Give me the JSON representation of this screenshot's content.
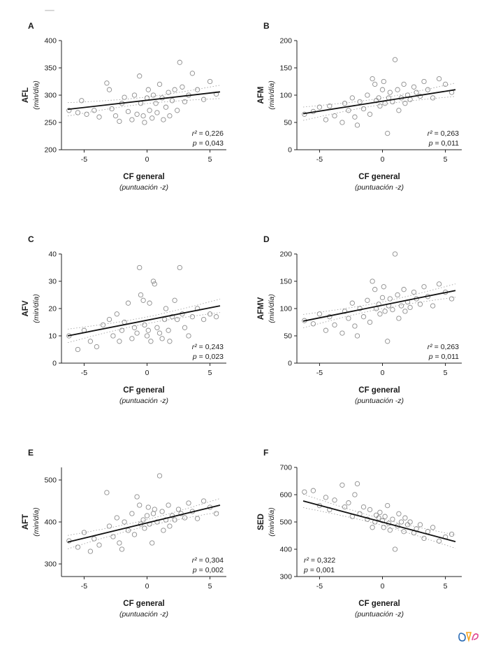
{
  "page": {
    "background": "#ffffff"
  },
  "style": {
    "axis_color": "#222222",
    "point_color": "#8c8c8c",
    "line_color": "#111111",
    "band_color": "#9a9a9a"
  },
  "chart_data": [
    {
      "type": "scatter",
      "panel": "A",
      "ylabel": "AFL",
      "ylabel_sub": "(min/día)",
      "xlabel": "CF general",
      "xlabel_sub": "(puntuación -z)",
      "xlim": [
        -6.8,
        6.3
      ],
      "ylim": [
        200,
        400
      ],
      "xticks": [
        -5,
        0,
        5
      ],
      "yticks": [
        200,
        250,
        300,
        350,
        400
      ],
      "regression": [
        [
          -6.3,
          274
        ],
        [
          5.8,
          306
        ]
      ],
      "stats": {
        "r2_label": "r²",
        "r2_value": "0,226",
        "p_label": "p",
        "p_value": "0,043",
        "position": "bottom-right"
      },
      "points": [
        [
          -6.2,
          272
        ],
        [
          -5.5,
          268
        ],
        [
          -5.2,
          290
        ],
        [
          -4.8,
          265
        ],
        [
          -4.2,
          272
        ],
        [
          -3.8,
          260
        ],
        [
          -3.2,
          322
        ],
        [
          -3.0,
          310
        ],
        [
          -2.8,
          275
        ],
        [
          -2.5,
          262
        ],
        [
          -2.2,
          252
        ],
        [
          -2.0,
          285
        ],
        [
          -1.8,
          296
        ],
        [
          -1.5,
          270
        ],
        [
          -1.2,
          255
        ],
        [
          -1.0,
          300
        ],
        [
          -0.8,
          265
        ],
        [
          -0.6,
          335
        ],
        [
          -0.5,
          285
        ],
        [
          -0.3,
          262
        ],
        [
          -0.2,
          250
        ],
        [
          0.0,
          295
        ],
        [
          0.1,
          310
        ],
        [
          0.2,
          272
        ],
        [
          0.4,
          258
        ],
        [
          0.5,
          300
        ],
        [
          0.7,
          285
        ],
        [
          0.8,
          268
        ],
        [
          1.0,
          320
        ],
        [
          1.2,
          295
        ],
        [
          1.3,
          255
        ],
        [
          1.5,
          278
        ],
        [
          1.7,
          305
        ],
        [
          1.8,
          262
        ],
        [
          2.0,
          290
        ],
        [
          2.2,
          310
        ],
        [
          2.4,
          272
        ],
        [
          2.6,
          360
        ],
        [
          2.8,
          315
        ],
        [
          3.0,
          288
        ],
        [
          3.3,
          300
        ],
        [
          3.6,
          340
        ],
        [
          4.0,
          310
        ],
        [
          4.5,
          292
        ],
        [
          5.0,
          325
        ],
        [
          5.5,
          302
        ]
      ]
    },
    {
      "type": "scatter",
      "panel": "B",
      "ylabel": "AFM",
      "ylabel_sub": "(min/día)",
      "xlabel": "CF general",
      "xlabel_sub": "(puntuación -z)",
      "xlim": [
        -6.8,
        6.3
      ],
      "ylim": [
        0,
        200
      ],
      "xticks": [
        -5,
        0,
        5
      ],
      "yticks": [
        0,
        50,
        100,
        150,
        200
      ],
      "regression": [
        [
          -6.3,
          66
        ],
        [
          5.8,
          110
        ]
      ],
      "stats": {
        "r2_label": "r²",
        "r2_value": "0,263",
        "p_label": "p",
        "p_value": "0,011",
        "position": "bottom-right"
      },
      "points": [
        [
          -6.2,
          65
        ],
        [
          -5.5,
          70
        ],
        [
          -5.0,
          78
        ],
        [
          -4.5,
          55
        ],
        [
          -4.2,
          80
        ],
        [
          -3.8,
          62
        ],
        [
          -3.2,
          50
        ],
        [
          -3.0,
          85
        ],
        [
          -2.7,
          72
        ],
        [
          -2.4,
          95
        ],
        [
          -2.2,
          60
        ],
        [
          -2.0,
          45
        ],
        [
          -1.8,
          88
        ],
        [
          -1.5,
          75
        ],
        [
          -1.2,
          100
        ],
        [
          -1.0,
          65
        ],
        [
          -0.8,
          130
        ],
        [
          -0.6,
          120
        ],
        [
          -0.5,
          90
        ],
        [
          -0.3,
          95
        ],
        [
          -0.2,
          80
        ],
        [
          0.0,
          110
        ],
        [
          0.1,
          125
        ],
        [
          0.2,
          85
        ],
        [
          0.4,
          30
        ],
        [
          0.5,
          95
        ],
        [
          0.6,
          105
        ],
        [
          0.8,
          88
        ],
        [
          1.0,
          165
        ],
        [
          1.2,
          110
        ],
        [
          1.3,
          72
        ],
        [
          1.5,
          95
        ],
        [
          1.7,
          120
        ],
        [
          1.8,
          85
        ],
        [
          2.0,
          100
        ],
        [
          2.2,
          92
        ],
        [
          2.5,
          115
        ],
        [
          2.7,
          105
        ],
        [
          3.0,
          98
        ],
        [
          3.3,
          125
        ],
        [
          3.6,
          110
        ],
        [
          4.0,
          95
        ],
        [
          4.5,
          130
        ],
        [
          5.0,
          120
        ],
        [
          5.5,
          105
        ]
      ]
    },
    {
      "type": "scatter",
      "panel": "C",
      "ylabel": "AFV",
      "ylabel_sub": "(min/día)",
      "xlabel": "CF general",
      "xlabel_sub": "(puntuación -z)",
      "xlim": [
        -6.8,
        6.3
      ],
      "ylim": [
        0,
        40
      ],
      "xticks": [
        -5,
        0,
        5
      ],
      "yticks": [
        0,
        10,
        20,
        30,
        40
      ],
      "regression": [
        [
          -6.3,
          10
        ],
        [
          5.8,
          21
        ]
      ],
      "stats": {
        "r2_label": "r²",
        "r2_value": "0,243",
        "p_label": "p",
        "p_value": "0,023",
        "position": "bottom-right"
      },
      "points": [
        [
          -6.2,
          10
        ],
        [
          -5.5,
          5
        ],
        [
          -5.0,
          12
        ],
        [
          -4.5,
          8
        ],
        [
          -4.0,
          6
        ],
        [
          -3.5,
          14
        ],
        [
          -3.0,
          16
        ],
        [
          -2.7,
          10
        ],
        [
          -2.4,
          18
        ],
        [
          -2.2,
          8
        ],
        [
          -2.0,
          12
        ],
        [
          -1.8,
          15
        ],
        [
          -1.5,
          22
        ],
        [
          -1.2,
          9
        ],
        [
          -1.0,
          13
        ],
        [
          -0.8,
          11
        ],
        [
          -0.6,
          35
        ],
        [
          -0.5,
          25
        ],
        [
          -0.3,
          23
        ],
        [
          -0.2,
          14
        ],
        [
          0.0,
          10
        ],
        [
          0.1,
          12
        ],
        [
          0.2,
          22
        ],
        [
          0.3,
          8
        ],
        [
          0.5,
          30
        ],
        [
          0.6,
          29
        ],
        [
          0.8,
          13
        ],
        [
          1.0,
          11
        ],
        [
          1.2,
          9
        ],
        [
          1.4,
          16
        ],
        [
          1.5,
          20
        ],
        [
          1.7,
          12
        ],
        [
          1.8,
          8
        ],
        [
          2.0,
          17
        ],
        [
          2.2,
          23
        ],
        [
          2.4,
          16
        ],
        [
          2.6,
          35
        ],
        [
          2.8,
          18
        ],
        [
          3.0,
          13
        ],
        [
          3.3,
          10
        ],
        [
          3.6,
          17
        ],
        [
          4.0,
          20
        ],
        [
          4.5,
          16
        ],
        [
          5.0,
          18
        ],
        [
          5.5,
          17
        ]
      ]
    },
    {
      "type": "scatter",
      "panel": "D",
      "ylabel": "AFMV",
      "ylabel_sub": "(min/día)",
      "xlabel": "CF general",
      "xlabel_sub": "(puntuación -z)",
      "xlim": [
        -6.8,
        6.3
      ],
      "ylim": [
        0,
        200
      ],
      "xticks": [
        -5,
        0,
        5
      ],
      "yticks": [
        0,
        50,
        100,
        150,
        200
      ],
      "regression": [
        [
          -6.3,
          77
        ],
        [
          5.8,
          133
        ]
      ],
      "stats": {
        "r2_label": "r²",
        "r2_value": "0,263",
        "p_label": "p",
        "p_value": "0,011",
        "position": "bottom-right"
      },
      "points": [
        [
          -6.2,
          78
        ],
        [
          -5.5,
          72
        ],
        [
          -5.0,
          90
        ],
        [
          -4.5,
          60
        ],
        [
          -4.2,
          85
        ],
        [
          -3.8,
          70
        ],
        [
          -3.2,
          55
        ],
        [
          -3.0,
          95
        ],
        [
          -2.7,
          82
        ],
        [
          -2.4,
          110
        ],
        [
          -2.2,
          68
        ],
        [
          -2.0,
          50
        ],
        [
          -1.8,
          100
        ],
        [
          -1.5,
          85
        ],
        [
          -1.2,
          115
        ],
        [
          -1.0,
          75
        ],
        [
          -0.8,
          150
        ],
        [
          -0.6,
          135
        ],
        [
          -0.5,
          100
        ],
        [
          -0.3,
          108
        ],
        [
          -0.2,
          90
        ],
        [
          0.0,
          120
        ],
        [
          0.1,
          140
        ],
        [
          0.2,
          95
        ],
        [
          0.4,
          40
        ],
        [
          0.5,
          105
        ],
        [
          0.6,
          118
        ],
        [
          0.8,
          98
        ],
        [
          1.0,
          200
        ],
        [
          1.2,
          125
        ],
        [
          1.3,
          82
        ],
        [
          1.5,
          105
        ],
        [
          1.7,
          135
        ],
        [
          1.8,
          95
        ],
        [
          2.0,
          112
        ],
        [
          2.2,
          102
        ],
        [
          2.5,
          130
        ],
        [
          2.7,
          118
        ],
        [
          3.0,
          108
        ],
        [
          3.3,
          140
        ],
        [
          3.6,
          122
        ],
        [
          4.0,
          105
        ],
        [
          4.5,
          145
        ],
        [
          5.0,
          130
        ],
        [
          5.5,
          118
        ]
      ]
    },
    {
      "type": "scatter",
      "panel": "E",
      "ylabel": "AFT",
      "ylabel_sub": "(min/día)",
      "xlabel": "CF general",
      "xlabel_sub": "(puntuación -z)",
      "xlim": [
        -6.8,
        6.3
      ],
      "ylim": [
        270,
        530
      ],
      "xticks": [
        -5,
        0,
        5
      ],
      "yticks": [
        300,
        400,
        500
      ],
      "regression": [
        [
          -6.3,
          352
        ],
        [
          5.8,
          440
        ]
      ],
      "stats": {
        "r2_label": "r²",
        "r2_value": "0,304",
        "p_label": "p",
        "p_value": "0,002",
        "position": "bottom-right"
      },
      "points": [
        [
          -6.2,
          355
        ],
        [
          -5.5,
          340
        ],
        [
          -5.0,
          375
        ],
        [
          -4.5,
          330
        ],
        [
          -4.2,
          360
        ],
        [
          -3.8,
          345
        ],
        [
          -3.2,
          470
        ],
        [
          -3.0,
          390
        ],
        [
          -2.7,
          365
        ],
        [
          -2.4,
          410
        ],
        [
          -2.2,
          350
        ],
        [
          -2.0,
          335
        ],
        [
          -1.8,
          400
        ],
        [
          -1.5,
          380
        ],
        [
          -1.2,
          420
        ],
        [
          -1.0,
          370
        ],
        [
          -0.8,
          460
        ],
        [
          -0.6,
          440
        ],
        [
          -0.5,
          395
        ],
        [
          -0.3,
          405
        ],
        [
          -0.2,
          385
        ],
        [
          0.0,
          415
        ],
        [
          0.1,
          435
        ],
        [
          0.2,
          395
        ],
        [
          0.4,
          350
        ],
        [
          0.5,
          420
        ],
        [
          0.6,
          430
        ],
        [
          0.8,
          400
        ],
        [
          1.0,
          510
        ],
        [
          1.2,
          425
        ],
        [
          1.3,
          380
        ],
        [
          1.5,
          405
        ],
        [
          1.7,
          440
        ],
        [
          1.8,
          390
        ],
        [
          2.0,
          415
        ],
        [
          2.2,
          405
        ],
        [
          2.5,
          430
        ],
        [
          2.7,
          420
        ],
        [
          3.0,
          410
        ],
        [
          3.3,
          445
        ],
        [
          3.6,
          425
        ],
        [
          4.0,
          408
        ],
        [
          4.5,
          450
        ],
        [
          5.0,
          435
        ],
        [
          5.5,
          420
        ]
      ]
    },
    {
      "type": "scatter",
      "panel": "F",
      "ylabel": "SED",
      "ylabel_sub": "(min/día)",
      "xlabel": "CF general",
      "xlabel_sub": "(puntuación -z)",
      "xlim": [
        -6.8,
        6.3
      ],
      "ylim": [
        300,
        700
      ],
      "xticks": [
        -5,
        0,
        5
      ],
      "yticks": [
        300,
        400,
        500,
        600,
        700
      ],
      "regression": [
        [
          -6.3,
          577
        ],
        [
          5.8,
          428
        ]
      ],
      "stats": {
        "r2_label": "r²",
        "r2_value": "0,322",
        "p_label": "p",
        "p_value": "0,001",
        "position": "bottom-left"
      },
      "points": [
        [
          -6.2,
          610
        ],
        [
          -5.5,
          615
        ],
        [
          -5.0,
          560
        ],
        [
          -4.5,
          590
        ],
        [
          -4.2,
          545
        ],
        [
          -3.8,
          580
        ],
        [
          -3.2,
          635
        ],
        [
          -3.0,
          555
        ],
        [
          -2.7,
          570
        ],
        [
          -2.4,
          520
        ],
        [
          -2.2,
          600
        ],
        [
          -2.0,
          640
        ],
        [
          -1.8,
          530
        ],
        [
          -1.5,
          555
        ],
        [
          -1.2,
          510
        ],
        [
          -1.0,
          545
        ],
        [
          -0.8,
          480
        ],
        [
          -0.6,
          500
        ],
        [
          -0.5,
          525
        ],
        [
          -0.3,
          515
        ],
        [
          -0.2,
          535
        ],
        [
          0.0,
          505
        ],
        [
          0.1,
          480
        ],
        [
          0.2,
          520
        ],
        [
          0.4,
          560
        ],
        [
          0.5,
          495
        ],
        [
          0.6,
          470
        ],
        [
          0.8,
          510
        ],
        [
          1.0,
          400
        ],
        [
          1.2,
          485
        ],
        [
          1.3,
          530
        ],
        [
          1.5,
          500
        ],
        [
          1.7,
          465
        ],
        [
          1.8,
          515
        ],
        [
          2.0,
          490
        ],
        [
          2.2,
          500
        ],
        [
          2.5,
          460
        ],
        [
          2.7,
          475
        ],
        [
          3.0,
          490
        ],
        [
          3.3,
          440
        ],
        [
          3.6,
          465
        ],
        [
          4.0,
          480
        ],
        [
          4.5,
          430
        ],
        [
          5.0,
          445
        ],
        [
          5.5,
          455
        ]
      ]
    }
  ],
  "logo": {
    "name": "publisher-logo"
  }
}
